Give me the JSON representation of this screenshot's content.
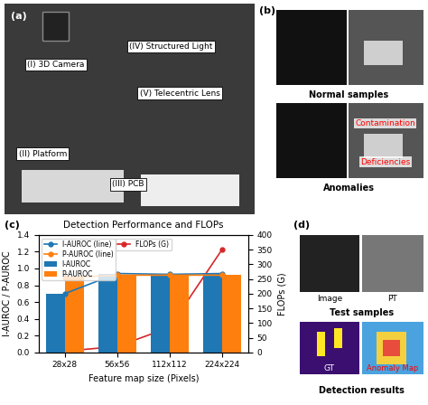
{
  "panels": [
    {
      "label": "(a)",
      "texts": [
        "(I) 3D Camera",
        "(II) Platform",
        "(III) PCB",
        "(IV) Structured Light",
        "(V) Telecentric Lens"
      ]
    },
    {
      "label": "(b)",
      "captions": [
        "Normal samples",
        "Anomalies"
      ],
      "annotations": [
        "Contamination",
        "Deficiencies"
      ]
    },
    {
      "label": "(c)"
    },
    {
      "label": "(d)",
      "image_titles": [
        "Image",
        "PT"
      ],
      "caption_top": "Test samples",
      "result_titles": [
        "GT",
        "Anomaly Map"
      ],
      "caption_bottom": "Detection results"
    }
  ],
  "chart_data": {
    "type": "bar",
    "title": "Detection Performance and FLOPs",
    "x_label": "Feature map size (Pixels)",
    "y_label": "I-AUROC / P-AUROC",
    "y2_label": "FLOPs (G)",
    "categories": [
      "28x28",
      "56x56",
      "112x112",
      "224x224"
    ],
    "series": [
      {
        "name": "I-AUROC (line)",
        "type": "line",
        "color": "#1f77b4",
        "marker": "o",
        "values": [
          0.7,
          0.94,
          0.93,
          0.94
        ]
      },
      {
        "name": "P-AUROC (line)",
        "type": "line",
        "color": "#ff7f0e",
        "marker": "o",
        "values": [
          0.89,
          0.92,
          0.92,
          0.92
        ]
      },
      {
        "name": "I-AUROC",
        "type": "bar",
        "color": "#1f77b4",
        "values": [
          0.7,
          0.94,
          0.93,
          0.94
        ]
      },
      {
        "name": "P-AUROC",
        "type": "bar",
        "color": "#ff7f0e",
        "values": [
          0.89,
          0.92,
          0.92,
          0.92
        ]
      },
      {
        "name": "FLOPs (G)",
        "type": "line",
        "color": "#d62728",
        "marker": "o",
        "axis": "y2",
        "values": [
          4,
          20,
          85,
          350
        ]
      }
    ],
    "ylim": [
      0.0,
      1.4
    ],
    "yticks": [
      0.0,
      0.2,
      0.4,
      0.6,
      0.8,
      1.0,
      1.2,
      1.4
    ],
    "y2lim": [
      0,
      400
    ],
    "y2ticks": [
      0,
      50,
      100,
      150,
      200,
      250,
      300,
      350,
      400
    ],
    "legend": "upper left"
  }
}
